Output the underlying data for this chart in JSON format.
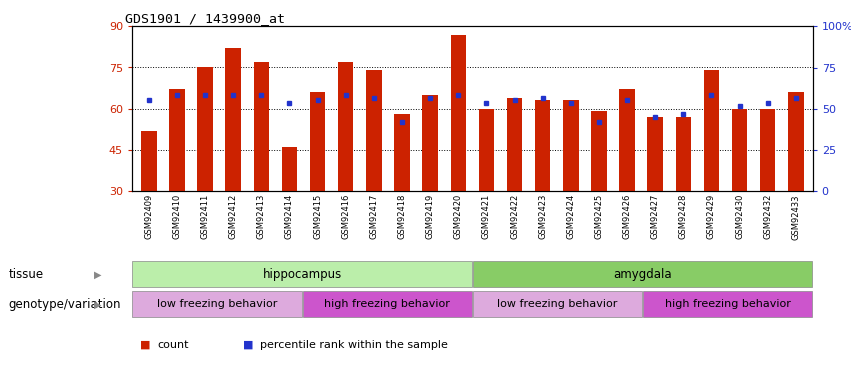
{
  "title": "GDS1901 / 1439900_at",
  "samples": [
    "GSM92409",
    "GSM92410",
    "GSM92411",
    "GSM92412",
    "GSM92413",
    "GSM92414",
    "GSM92415",
    "GSM92416",
    "GSM92417",
    "GSM92418",
    "GSM92419",
    "GSM92420",
    "GSM92421",
    "GSM92422",
    "GSM92423",
    "GSM92424",
    "GSM92425",
    "GSM92426",
    "GSM92427",
    "GSM92428",
    "GSM92429",
    "GSM92430",
    "GSM92432",
    "GSM92433"
  ],
  "bar_values": [
    52,
    67,
    75,
    82,
    77,
    46,
    66,
    77,
    74,
    58,
    65,
    87,
    60,
    64,
    63,
    63,
    59,
    67,
    57,
    57,
    74,
    60,
    60,
    66
  ],
  "blue_values": [
    63,
    65,
    65,
    65,
    65,
    62,
    63,
    65,
    64,
    55,
    64,
    65,
    62,
    63,
    64,
    62,
    55,
    63,
    57,
    58,
    65,
    61,
    62,
    64
  ],
  "ylim_left": [
    30,
    90
  ],
  "ylim_right": [
    0,
    100
  ],
  "yticks_left": [
    30,
    45,
    60,
    75,
    90
  ],
  "yticks_right": [
    0,
    25,
    50,
    75,
    100
  ],
  "ytick_labels_left": [
    "30",
    "45",
    "60",
    "75",
    "90"
  ],
  "ytick_labels_right": [
    "0",
    "25",
    "50",
    "75",
    "100%"
  ],
  "hlines": [
    45,
    60,
    75
  ],
  "bar_color": "#cc2200",
  "blue_color": "#2233cc",
  "tissue_groups": [
    {
      "label": "hippocampus",
      "start": 0,
      "end": 12,
      "color": "#bbeeaa"
    },
    {
      "label": "amygdala",
      "start": 12,
      "end": 24,
      "color": "#88cc66"
    }
  ],
  "genotype_groups": [
    {
      "label": "low freezing behavior",
      "start": 0,
      "end": 6,
      "color": "#ddaadd"
    },
    {
      "label": "high freezing behavior",
      "start": 6,
      "end": 12,
      "color": "#cc55cc"
    },
    {
      "label": "low freezing behavior",
      "start": 12,
      "end": 18,
      "color": "#ddaadd"
    },
    {
      "label": "high freezing behavior",
      "start": 18,
      "end": 24,
      "color": "#cc55cc"
    }
  ],
  "tissue_label": "tissue",
  "genotype_label": "genotype/variation",
  "background_color": "#ffffff",
  "plot_bg_color": "#ffffff"
}
